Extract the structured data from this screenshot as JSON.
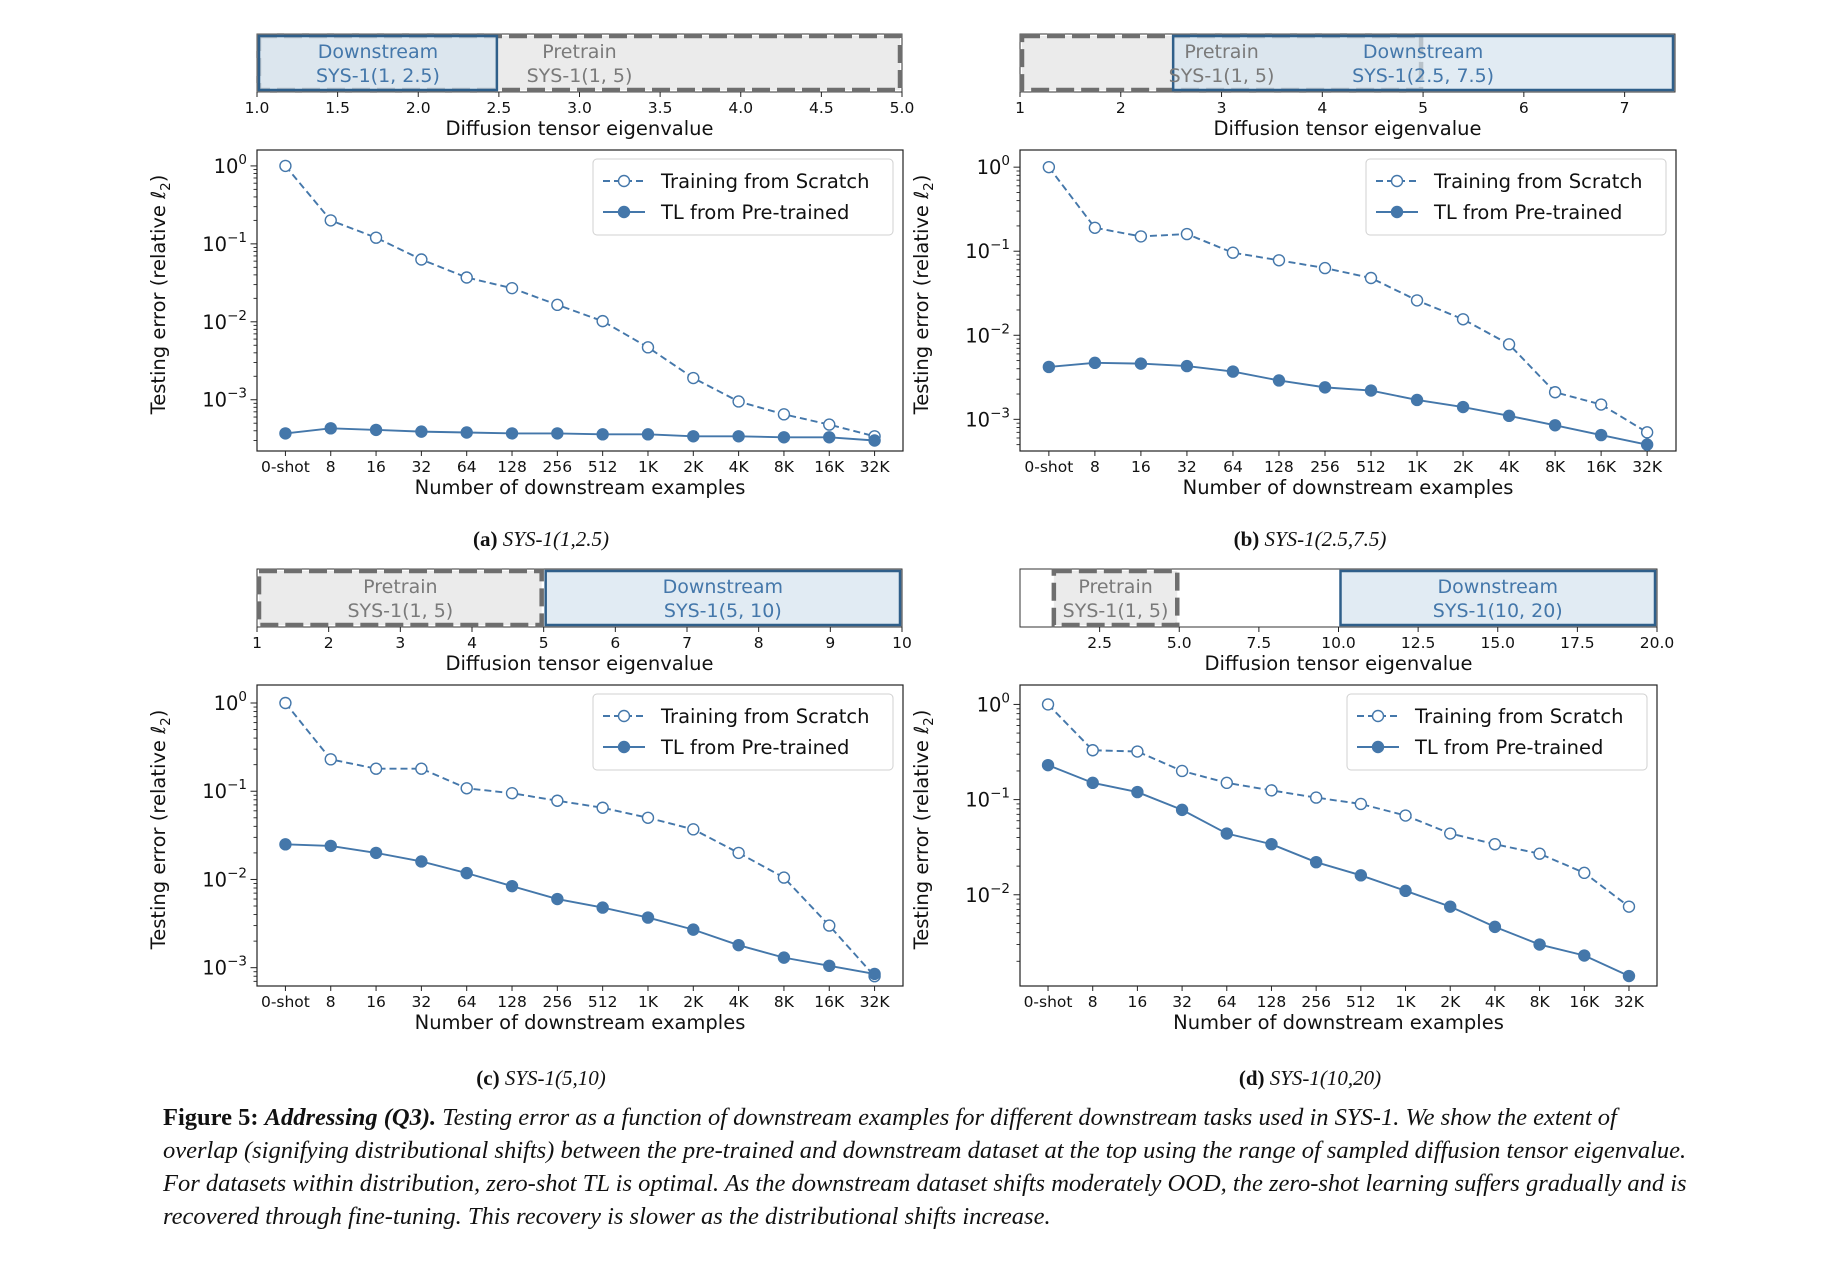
{
  "colors": {
    "series": "#4477aa",
    "downstream_fill": "#d5e3ef",
    "downstream_edge": "#2f5f8a",
    "downstream_text": "#4477aa",
    "pretrain_fill": "#e8e8e8",
    "pretrain_edge": "#6e6e6e",
    "pretrain_text": "#7a7a7a"
  },
  "chart_data": [
    {
      "type": "line",
      "panel_label": "(a)",
      "caption": "SYS-1(1,2.5)",
      "range_bar": {
        "xlabel": "Diffusion tensor eigenvalue",
        "xlim": [
          1.0,
          5.0
        ],
        "ticks": [
          1.0,
          1.5,
          2.0,
          2.5,
          3.0,
          3.5,
          4.0,
          4.5,
          5.0
        ],
        "tick_labels": [
          "1.0",
          "1.5",
          "2.0",
          "2.5",
          "3.0",
          "3.5",
          "4.0",
          "4.5",
          "5.0"
        ],
        "pretrain": {
          "label": "Pretrain",
          "sublabel": "SYS-1(1, 5)",
          "range": [
            1,
            5
          ]
        },
        "downstream": {
          "label": "Downstream",
          "sublabel": "SYS-1(1, 2.5)",
          "range": [
            1,
            2.5
          ]
        }
      },
      "xlabel": "Number of downstream examples",
      "ylabel": "Testing error (relative ℓ2)",
      "yscale": "log",
      "ylim": [
        0.00022,
        1.6
      ],
      "yticks": [
        0.001,
        0.01,
        0.1,
        1
      ],
      "ytick_labels": [
        "10",
        "10",
        "10",
        "10"
      ],
      "ytick_exponents": [
        "−3",
        "−2",
        "−1",
        "0"
      ],
      "categories": [
        "0-shot",
        "8",
        "16",
        "32",
        "64",
        "128",
        "256",
        "512",
        "1K",
        "2K",
        "4K",
        "8K",
        "16K",
        "32K"
      ],
      "legend_position": "upper right",
      "series": [
        {
          "name": "Training from Scratch",
          "style": "dashed-open",
          "values": [
            1.0,
            0.2,
            0.12,
            0.063,
            0.037,
            0.027,
            0.0165,
            0.0102,
            0.0047,
            0.0019,
            0.00095,
            0.00065,
            0.00048,
            0.00034
          ]
        },
        {
          "name": "TL from Pre-trained",
          "style": "solid-filled",
          "values": [
            0.00037,
            0.00043,
            0.00041,
            0.00039,
            0.00038,
            0.00037,
            0.00037,
            0.00036,
            0.00036,
            0.00034,
            0.00034,
            0.00033,
            0.00033,
            0.0003
          ]
        }
      ]
    },
    {
      "type": "line",
      "panel_label": "(b)",
      "caption": "SYS-1(2.5,7.5)",
      "range_bar": {
        "xlabel": "Diffusion tensor eigenvalue",
        "xlim": [
          1,
          7.5
        ],
        "ticks": [
          1,
          2,
          3,
          4,
          5,
          6,
          7
        ],
        "tick_labels": [
          "1",
          "2",
          "3",
          "4",
          "5",
          "6",
          "7"
        ],
        "pretrain": {
          "label": "Pretrain",
          "sublabel": "SYS-1(1, 5)",
          "range": [
            1,
            5
          ]
        },
        "downstream": {
          "label": "Downstream",
          "sublabel": "SYS-1(2.5, 7.5)",
          "range": [
            2.5,
            7.5
          ]
        }
      },
      "xlabel": "Number of downstream examples",
      "ylabel": "Testing error (relative ℓ2)",
      "yscale": "log",
      "ylim": [
        0.00042,
        1.6
      ],
      "yticks": [
        0.001,
        0.01,
        0.1,
        1
      ],
      "ytick_labels": [
        "10",
        "10",
        "10",
        "10"
      ],
      "ytick_exponents": [
        "−3",
        "−2",
        "−1",
        "0"
      ],
      "categories": [
        "0-shot",
        "8",
        "16",
        "32",
        "64",
        "128",
        "256",
        "512",
        "1K",
        "2K",
        "4K",
        "8K",
        "16K",
        "32K"
      ],
      "legend_position": "upper right",
      "series": [
        {
          "name": "Training from Scratch",
          "style": "dashed-open",
          "values": [
            1.0,
            0.19,
            0.15,
            0.16,
            0.096,
            0.078,
            0.063,
            0.048,
            0.026,
            0.0155,
            0.0078,
            0.0021,
            0.0015,
            0.0007
          ]
        },
        {
          "name": "TL from Pre-trained",
          "style": "solid-filled",
          "values": [
            0.0042,
            0.0047,
            0.0046,
            0.0043,
            0.0037,
            0.0029,
            0.0024,
            0.0022,
            0.0017,
            0.0014,
            0.0011,
            0.00085,
            0.00065,
            0.0005
          ]
        }
      ]
    },
    {
      "type": "line",
      "panel_label": "(c)",
      "caption": "SYS-1(5,10)",
      "range_bar": {
        "xlabel": "Diffusion tensor eigenvalue",
        "xlim": [
          1,
          10
        ],
        "ticks": [
          1,
          2,
          3,
          4,
          5,
          6,
          7,
          8,
          9,
          10
        ],
        "tick_labels": [
          "1",
          "2",
          "3",
          "4",
          "5",
          "6",
          "7",
          "8",
          "9",
          "10"
        ],
        "pretrain": {
          "label": "Pretrain",
          "sublabel": "SYS-1(1, 5)",
          "range": [
            1,
            5
          ]
        },
        "downstream": {
          "label": "Downstream",
          "sublabel": "SYS-1(5, 10)",
          "range": [
            5,
            10
          ]
        }
      },
      "xlabel": "Number of downstream examples",
      "ylabel": "Testing error (relative ℓ2)",
      "yscale": "log",
      "ylim": [
        0.00062,
        1.6
      ],
      "yticks": [
        0.001,
        0.01,
        0.1,
        1
      ],
      "ytick_labels": [
        "10",
        "10",
        "10",
        "10"
      ],
      "ytick_exponents": [
        "−3",
        "−2",
        "−1",
        "0"
      ],
      "categories": [
        "0-shot",
        "8",
        "16",
        "32",
        "64",
        "128",
        "256",
        "512",
        "1K",
        "2K",
        "4K",
        "8K",
        "16K",
        "32K"
      ],
      "legend_position": "upper right",
      "series": [
        {
          "name": "Training from Scratch",
          "style": "dashed-open",
          "values": [
            1.0,
            0.23,
            0.18,
            0.18,
            0.108,
            0.095,
            0.078,
            0.065,
            0.05,
            0.037,
            0.02,
            0.0105,
            0.003,
            0.0008
          ]
        },
        {
          "name": "TL from Pre-trained",
          "style": "solid-filled",
          "values": [
            0.025,
            0.024,
            0.02,
            0.016,
            0.0118,
            0.0084,
            0.006,
            0.0048,
            0.0037,
            0.0027,
            0.0018,
            0.0013,
            0.00105,
            0.00085
          ]
        }
      ]
    },
    {
      "type": "line",
      "panel_label": "(d)",
      "caption": "SYS-1(10,20)",
      "range_bar": {
        "xlabel": "Diffusion tensor eigenvalue",
        "xlim": [
          0,
          20
        ],
        "ticks": [
          2.5,
          5.0,
          7.5,
          10.0,
          12.5,
          15.0,
          17.5,
          20.0
        ],
        "tick_labels": [
          "2.5",
          "5.0",
          "7.5",
          "10.0",
          "12.5",
          "15.0",
          "17.5",
          "20.0"
        ],
        "pretrain": {
          "label": "Pretrain",
          "sublabel": "SYS-1(1, 5)",
          "range": [
            1,
            5
          ]
        },
        "downstream": {
          "label": "Downstream",
          "sublabel": "SYS-1(10, 20)",
          "range": [
            10,
            20
          ]
        }
      },
      "xlabel": "Number of downstream examples",
      "ylabel": "Testing error (relative ℓ2)",
      "yscale": "log",
      "ylim": [
        0.0011,
        1.6
      ],
      "yticks": [
        0.01,
        0.1,
        1
      ],
      "ytick_labels": [
        "10",
        "10",
        "10"
      ],
      "ytick_exponents": [
        "−2",
        "−1",
        "0"
      ],
      "categories": [
        "0-shot",
        "8",
        "16",
        "32",
        "64",
        "128",
        "256",
        "512",
        "1K",
        "2K",
        "4K",
        "8K",
        "16K",
        "32K"
      ],
      "legend_position": "upper right",
      "series": [
        {
          "name": "Training from Scratch",
          "style": "dashed-open",
          "values": [
            1.0,
            0.33,
            0.32,
            0.2,
            0.15,
            0.125,
            0.105,
            0.09,
            0.068,
            0.044,
            0.034,
            0.027,
            0.017,
            0.0075
          ]
        },
        {
          "name": "TL from Pre-trained",
          "style": "solid-filled",
          "values": [
            0.23,
            0.15,
            0.12,
            0.078,
            0.044,
            0.034,
            0.022,
            0.016,
            0.011,
            0.0075,
            0.0046,
            0.003,
            0.0023,
            0.0014
          ]
        }
      ]
    }
  ],
  "figure_caption": {
    "number": "Figure 5:",
    "title": "Addressing (Q3).",
    "text": "Testing error as a function of downstream examples for different downstream tasks used in SYS-1. We show the extent of overlap (signifying distributional shifts) between the pre-trained and downstream dataset at the top using the range of sampled diffusion tensor eigenvalue. For datasets within distribution, zero-shot TL is optimal. As the downstream dataset shifts moderately OOD, the zero-shot learning suffers gradually and is recovered through fine-tuning. This recovery is slower as the distributional shifts increase."
  }
}
